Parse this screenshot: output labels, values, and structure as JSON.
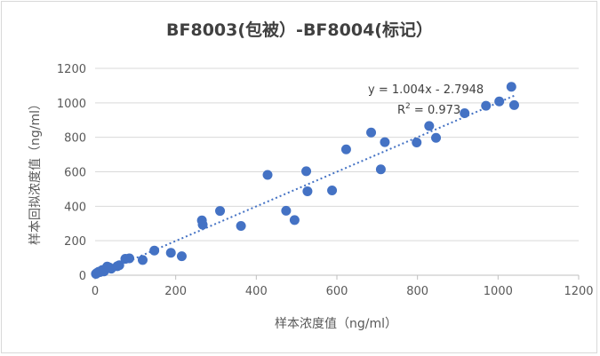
{
  "chart_data": {
    "type": "scatter",
    "title": "BF8003(包被）-BF8004(标记）",
    "xlabel": "样本浓度值（ng/ml）",
    "ylabel": "样本回拟浓度值（ng/ml）",
    "xlim": [
      0,
      1200
    ],
    "ylim": [
      0,
      1200
    ],
    "x_ticks": [
      "0",
      "200",
      "400",
      "600",
      "800",
      "1000",
      "1200"
    ],
    "y_ticks": [
      "0",
      "200",
      "400",
      "600",
      "800",
      "1000",
      "1200"
    ],
    "grid": "horizontal",
    "trendline": {
      "type": "linear",
      "slope": 1.004,
      "intercept": -2.7948,
      "style": "dotted"
    },
    "equation_label": "y = 1.004x - 2.7948",
    "r2_label_prefix": "R",
    "r2_label_sup": "2",
    "r2_label_value": " = 0.973",
    "marker_color": "#4472C4",
    "points": [
      {
        "x": 2,
        "y": 8
      },
      {
        "x": 4,
        "y": 12
      },
      {
        "x": 6,
        "y": 15
      },
      {
        "x": 9,
        "y": 20
      },
      {
        "x": 12,
        "y": 18
      },
      {
        "x": 15,
        "y": 25
      },
      {
        "x": 18,
        "y": 30
      },
      {
        "x": 22,
        "y": 22
      },
      {
        "x": 25,
        "y": 35
      },
      {
        "x": 28,
        "y": 40
      },
      {
        "x": 30,
        "y": 50
      },
      {
        "x": 35,
        "y": 45
      },
      {
        "x": 40,
        "y": 38
      },
      {
        "x": 55,
        "y": 52
      },
      {
        "x": 60,
        "y": 58
      },
      {
        "x": 75,
        "y": 95
      },
      {
        "x": 85,
        "y": 98
      },
      {
        "x": 118,
        "y": 88
      },
      {
        "x": 147,
        "y": 143
      },
      {
        "x": 188,
        "y": 130
      },
      {
        "x": 215,
        "y": 110
      },
      {
        "x": 265,
        "y": 318
      },
      {
        "x": 267,
        "y": 293
      },
      {
        "x": 310,
        "y": 373
      },
      {
        "x": 362,
        "y": 286
      },
      {
        "x": 428,
        "y": 582
      },
      {
        "x": 474,
        "y": 374
      },
      {
        "x": 495,
        "y": 320
      },
      {
        "x": 524,
        "y": 603
      },
      {
        "x": 527,
        "y": 487
      },
      {
        "x": 588,
        "y": 492
      },
      {
        "x": 623,
        "y": 730
      },
      {
        "x": 685,
        "y": 828
      },
      {
        "x": 709,
        "y": 614
      },
      {
        "x": 719,
        "y": 772
      },
      {
        "x": 798,
        "y": 770
      },
      {
        "x": 829,
        "y": 866
      },
      {
        "x": 846,
        "y": 797
      },
      {
        "x": 917,
        "y": 940
      },
      {
        "x": 970,
        "y": 983
      },
      {
        "x": 1003,
        "y": 1008
      },
      {
        "x": 1033,
        "y": 1093
      },
      {
        "x": 1040,
        "y": 987
      }
    ]
  }
}
